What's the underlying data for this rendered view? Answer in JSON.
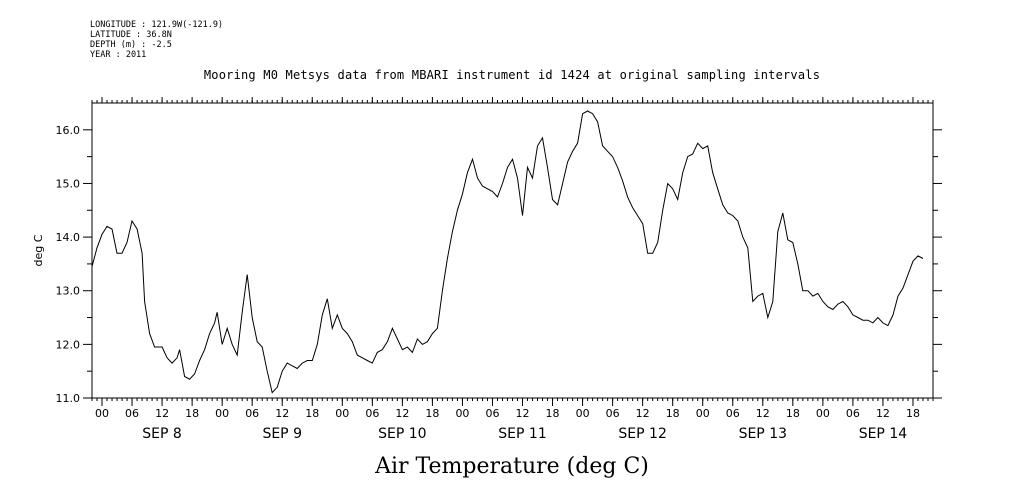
{
  "metadata": {
    "longitude": "LONGITUDE : 121.9W(-121.9)",
    "latitude": "LATITUDE : 36.8N",
    "depth": "DEPTH (m) : -2.5",
    "year": "YEAR : 2011"
  },
  "chart_data": {
    "type": "line",
    "title": "Mooring M0 Metsys data from MBARI instrument id 1424 at original sampling intervals",
    "xlabel": "",
    "ylabel": "deg C",
    "footer": "Air Temperature (deg C)",
    "ylim": [
      11.0,
      16.5
    ],
    "yticks": [
      11.0,
      12.0,
      13.0,
      14.0,
      15.0,
      16.0
    ],
    "ytick_labels": [
      "11.0",
      "12.0",
      "13.0",
      "14.0",
      "15.0",
      "16.0"
    ],
    "xlim_hours": [
      -2,
      166
    ],
    "hour_tick_labels": [
      "00",
      "06",
      "12",
      "18"
    ],
    "day_labels": [
      "SEP  8",
      "SEP  9",
      "SEP 10",
      "SEP 11",
      "SEP 12",
      "SEP 13",
      "SEP 14"
    ],
    "grid": false,
    "series": [
      {
        "name": "",
        "color": "#000000",
        "points": [
          [
            -2.0,
            13.45
          ],
          [
            -1.0,
            13.8
          ],
          [
            0.0,
            14.05
          ],
          [
            1.0,
            14.2
          ],
          [
            2.0,
            14.15
          ],
          [
            3.0,
            13.7
          ],
          [
            4.0,
            13.7
          ],
          [
            5.0,
            13.9
          ],
          [
            6.0,
            14.3
          ],
          [
            7.0,
            14.15
          ],
          [
            8.0,
            13.7
          ],
          [
            8.5,
            12.8
          ],
          [
            9.5,
            12.2
          ],
          [
            10.5,
            11.95
          ],
          [
            12.0,
            11.95
          ],
          [
            13.0,
            11.75
          ],
          [
            14.0,
            11.65
          ],
          [
            15.0,
            11.75
          ],
          [
            15.5,
            11.9
          ],
          [
            16.5,
            11.4
          ],
          [
            17.5,
            11.35
          ],
          [
            18.5,
            11.45
          ],
          [
            19.5,
            11.7
          ],
          [
            20.5,
            11.9
          ],
          [
            21.5,
            12.2
          ],
          [
            22.5,
            12.4
          ],
          [
            23.0,
            12.6
          ],
          [
            24.0,
            12.0
          ],
          [
            25.0,
            12.3
          ],
          [
            26.0,
            12.0
          ],
          [
            27.0,
            11.8
          ],
          [
            28.0,
            12.6
          ],
          [
            29.0,
            13.3
          ],
          [
            30.0,
            12.5
          ],
          [
            31.0,
            12.05
          ],
          [
            32.0,
            11.95
          ],
          [
            33.0,
            11.5
          ],
          [
            34.0,
            11.1
          ],
          [
            35.0,
            11.2
          ],
          [
            36.0,
            11.5
          ],
          [
            37.0,
            11.65
          ],
          [
            38.0,
            11.6
          ],
          [
            39.0,
            11.55
          ],
          [
            40.0,
            11.65
          ],
          [
            41.0,
            11.7
          ],
          [
            42.0,
            11.7
          ],
          [
            43.0,
            12.0
          ],
          [
            44.0,
            12.55
          ],
          [
            45.0,
            12.85
          ],
          [
            46.0,
            12.3
          ],
          [
            47.0,
            12.55
          ],
          [
            48.0,
            12.3
          ],
          [
            49.0,
            12.2
          ],
          [
            50.0,
            12.05
          ],
          [
            51.0,
            11.8
          ],
          [
            52.0,
            11.75
          ],
          [
            53.0,
            11.7
          ],
          [
            54.0,
            11.65
          ],
          [
            55.0,
            11.85
          ],
          [
            56.0,
            11.9
          ],
          [
            57.0,
            12.05
          ],
          [
            58.0,
            12.3
          ],
          [
            59.0,
            12.1
          ],
          [
            60.0,
            11.9
          ],
          [
            61.0,
            11.95
          ],
          [
            62.0,
            11.85
          ],
          [
            63.0,
            12.1
          ],
          [
            64.0,
            12.0
          ],
          [
            65.0,
            12.05
          ],
          [
            66.0,
            12.2
          ],
          [
            67.0,
            12.3
          ],
          [
            68.0,
            13.0
          ],
          [
            69.0,
            13.6
          ],
          [
            70.0,
            14.1
          ],
          [
            71.0,
            14.5
          ],
          [
            72.0,
            14.8
          ],
          [
            73.0,
            15.2
          ],
          [
            74.0,
            15.45
          ],
          [
            75.0,
            15.1
          ],
          [
            76.0,
            14.95
          ],
          [
            77.0,
            14.9
          ],
          [
            78.0,
            14.85
          ],
          [
            79.0,
            14.75
          ],
          [
            80.0,
            15.0
          ],
          [
            81.0,
            15.3
          ],
          [
            82.0,
            15.45
          ],
          [
            83.0,
            15.1
          ],
          [
            84.0,
            14.4
          ],
          [
            85.0,
            15.3
          ],
          [
            86.0,
            15.1
          ],
          [
            87.0,
            15.7
          ],
          [
            88.0,
            15.85
          ],
          [
            89.0,
            15.3
          ],
          [
            90.0,
            14.7
          ],
          [
            91.0,
            14.6
          ],
          [
            92.0,
            15.0
          ],
          [
            93.0,
            15.4
          ],
          [
            94.0,
            15.6
          ],
          [
            95.0,
            15.75
          ],
          [
            96.0,
            16.3
          ],
          [
            97.0,
            16.35
          ],
          [
            98.0,
            16.3
          ],
          [
            99.0,
            16.15
          ],
          [
            100.0,
            15.7
          ],
          [
            101.0,
            15.6
          ],
          [
            102.0,
            15.5
          ],
          [
            103.0,
            15.3
          ],
          [
            104.0,
            15.05
          ],
          [
            105.0,
            14.75
          ],
          [
            106.0,
            14.55
          ],
          [
            107.0,
            14.4
          ],
          [
            108.0,
            14.25
          ],
          [
            109.0,
            13.7
          ],
          [
            110.0,
            13.7
          ],
          [
            111.0,
            13.9
          ],
          [
            112.0,
            14.5
          ],
          [
            113.0,
            15.0
          ],
          [
            114.0,
            14.9
          ],
          [
            115.0,
            14.7
          ],
          [
            116.0,
            15.2
          ],
          [
            117.0,
            15.5
          ],
          [
            118.0,
            15.55
          ],
          [
            119.0,
            15.75
          ],
          [
            120.0,
            15.65
          ],
          [
            121.0,
            15.7
          ],
          [
            122.0,
            15.2
          ],
          [
            123.0,
            14.9
          ],
          [
            124.0,
            14.6
          ],
          [
            125.0,
            14.45
          ],
          [
            126.0,
            14.4
          ],
          [
            127.0,
            14.3
          ],
          [
            128.0,
            14.0
          ],
          [
            129.0,
            13.8
          ],
          [
            130.0,
            12.8
          ],
          [
            131.0,
            12.9
          ],
          [
            132.0,
            12.95
          ],
          [
            133.0,
            12.5
          ],
          [
            134.0,
            12.8
          ],
          [
            135.0,
            14.1
          ],
          [
            136.0,
            14.45
          ],
          [
            137.0,
            13.95
          ],
          [
            138.0,
            13.9
          ],
          [
            139.0,
            13.5
          ],
          [
            140.0,
            13.0
          ],
          [
            141.0,
            13.0
          ],
          [
            142.0,
            12.9
          ],
          [
            143.0,
            12.95
          ],
          [
            144.0,
            12.8
          ],
          [
            145.0,
            12.7
          ],
          [
            146.0,
            12.65
          ],
          [
            147.0,
            12.75
          ],
          [
            148.0,
            12.8
          ],
          [
            149.0,
            12.7
          ],
          [
            150.0,
            12.55
          ],
          [
            151.0,
            12.5
          ],
          [
            152.0,
            12.45
          ],
          [
            153.0,
            12.45
          ],
          [
            154.0,
            12.4
          ],
          [
            155.0,
            12.5
          ],
          [
            156.0,
            12.4
          ],
          [
            157.0,
            12.35
          ],
          [
            158.0,
            12.55
          ],
          [
            159.0,
            12.9
          ],
          [
            160.0,
            13.05
          ],
          [
            161.0,
            13.3
          ],
          [
            162.0,
            13.55
          ],
          [
            163.0,
            13.65
          ],
          [
            164.0,
            13.6
          ]
        ]
      }
    ]
  }
}
